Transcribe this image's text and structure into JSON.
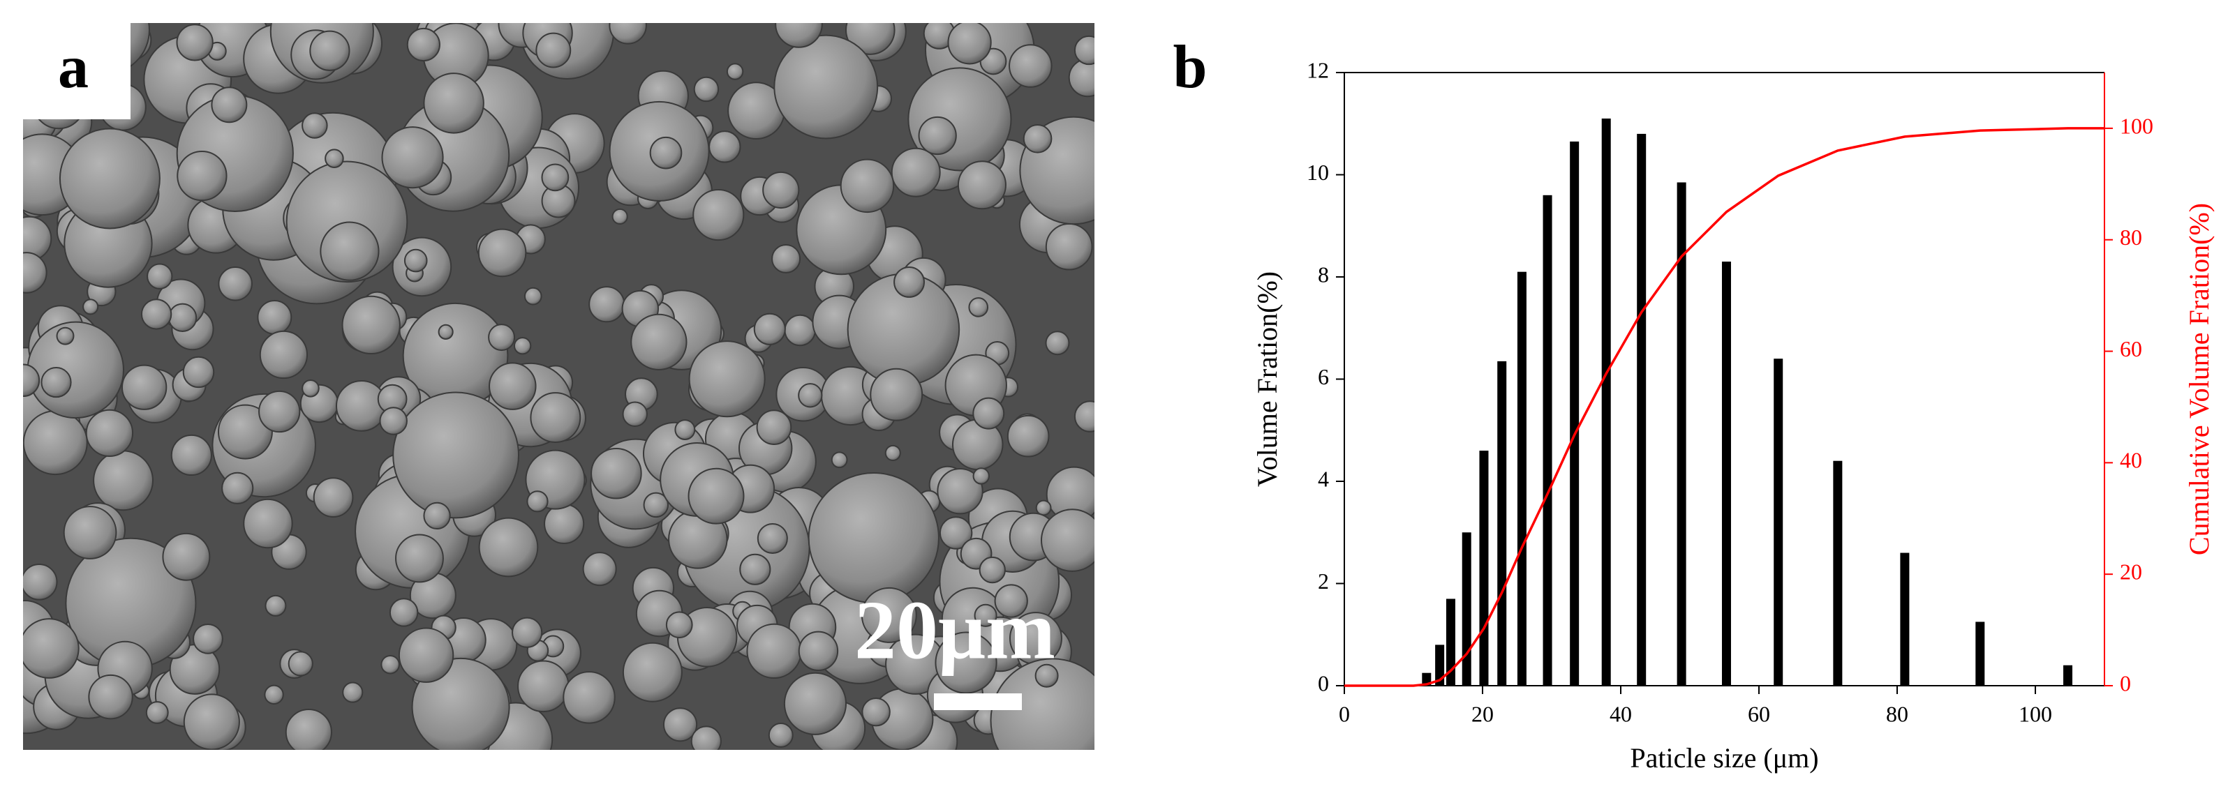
{
  "panel_a": {
    "label": "a",
    "scale_bar_label": "20μm"
  },
  "chart_data": {
    "type": "bar",
    "panel_label": "b",
    "xlabel": "Paticle size (μm)",
    "ylabel": "Volume Fration(%)",
    "y2label": "Cumulative Volume Fration(%)",
    "xlim": [
      0,
      110
    ],
    "xticks": [
      0,
      20,
      40,
      60,
      80,
      100
    ],
    "ylim": [
      0,
      12
    ],
    "yticks": [
      0,
      2,
      4,
      6,
      8,
      10,
      12
    ],
    "y2lim": [
      0,
      110
    ],
    "y2ticks": [
      0,
      20,
      40,
      60,
      80,
      100
    ],
    "series": [
      {
        "type": "bar",
        "color": "#000000",
        "x": [
          11.9,
          13.8,
          15.4,
          17.7,
          20.2,
          22.8,
          25.7,
          29.4,
          33.3,
          37.9,
          43.0,
          48.8,
          55.3,
          62.8,
          71.4,
          81.1,
          92.0,
          104.7
        ],
        "values": [
          0.25,
          0.8,
          1.7,
          3.0,
          4.6,
          6.35,
          8.1,
          9.6,
          10.65,
          11.1,
          10.8,
          9.85,
          8.3,
          6.4,
          4.4,
          2.6,
          1.25,
          0.4
        ]
      },
      {
        "type": "line",
        "axis": "y2",
        "color": "#ff0000",
        "x": [
          0,
          10,
          11.9,
          13.8,
          15.4,
          17.7,
          20.2,
          22.8,
          25.7,
          29.4,
          33.3,
          37.9,
          43.0,
          48.8,
          55.3,
          62.8,
          71.4,
          81.1,
          92.0,
          104.7,
          110
        ],
        "values": [
          0,
          0,
          0.25,
          1,
          2.7,
          5.7,
          10.3,
          16.7,
          24.8,
          34.4,
          45,
          56,
          67,
          77,
          85,
          91.5,
          96,
          98.5,
          99.6,
          100,
          100
        ]
      }
    ]
  }
}
